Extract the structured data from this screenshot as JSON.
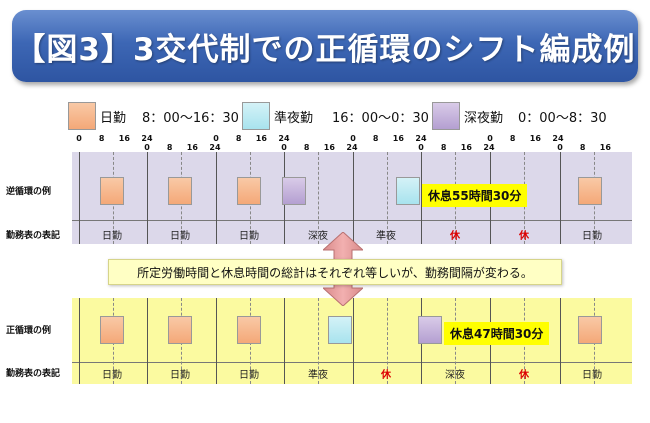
{
  "title": "【図3】3交代制での正循環のシフト編成例",
  "legend": [
    {
      "name": "日勤",
      "time": "8：00〜16：30",
      "color": "#f4a878"
    },
    {
      "name": "準夜勤",
      "time": "16：00〜0：30",
      "color": "#a8e3ee"
    },
    {
      "name": "深夜勤",
      "time": "0：00〜8：30",
      "color": "#b49fd1"
    }
  ],
  "tick_labels": [
    "0",
    "8",
    "16",
    "24"
  ],
  "tick_last_row": [
    "0",
    "8",
    "16"
  ],
  "reverse": {
    "row_label": "逆循環の例",
    "schedule_label": "勤務表の表記",
    "rest_callout": "休息55時間30分",
    "cells": [
      "日勤",
      "日勤",
      "日勤",
      "深夜",
      "準夜",
      "休",
      "休",
      "日勤"
    ]
  },
  "forward": {
    "row_label": "正循環の例",
    "schedule_label": "勤務表の表記",
    "rest_callout": "休息47時間30分",
    "cells": [
      "日勤",
      "日勤",
      "日勤",
      "準夜",
      "休",
      "深夜",
      "休",
      "日勤"
    ]
  },
  "note": "所定労働時間と休息時間の総計はそれぞれ等しいが、勤務間隔が変わる。",
  "rest_word": "休"
}
